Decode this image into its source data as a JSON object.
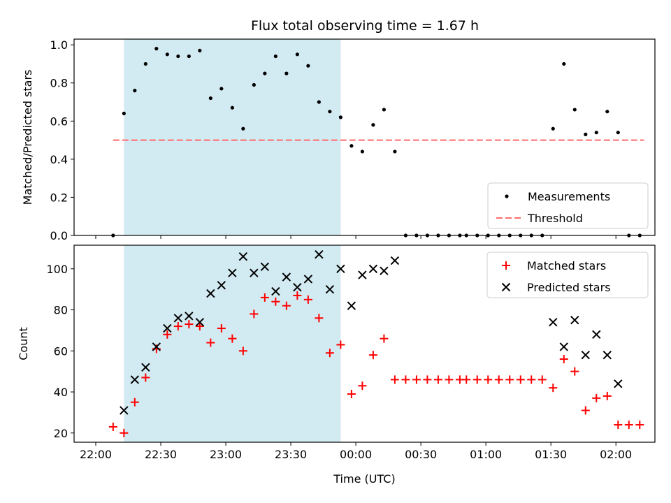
{
  "chart_data": {
    "type": "scatter",
    "title": "Flux total observing time = 1.67 h",
    "x_ticks": [
      "22:00",
      "22:30",
      "23:00",
      "23:30",
      "00:00",
      "00:30",
      "01:00",
      "01:30",
      "02:00"
    ],
    "xlabel": "Time (UTC)",
    "highlight_span": [
      "22:13",
      "23:53"
    ],
    "colors": {
      "highlight": "#add8e6",
      "threshold": "#ff6b6b",
      "matched": "#ff0000",
      "predicted": "#000000",
      "measurement": "#000000"
    },
    "panels": [
      {
        "ylabel": "Matched/Predicted stars",
        "ylim": [
          0,
          1.03
        ],
        "yticks": [
          "0.0",
          "0.2",
          "0.4",
          "0.6",
          "0.8",
          "1.0"
        ],
        "legend": {
          "placement": "lower-right",
          "entries": [
            "Measurements",
            "Threshold"
          ]
        },
        "threshold": {
          "name": "Threshold",
          "value": 0.5,
          "x_range": [
            "22:08",
            "02:13"
          ]
        },
        "series": [
          {
            "name": "Measurements",
            "marker": "dot",
            "points": [
              [
                "22:08",
                0.0
              ],
              [
                "22:13",
                0.64
              ],
              [
                "22:18",
                0.76
              ],
              [
                "22:23",
                0.9
              ],
              [
                "22:28",
                0.98
              ],
              [
                "22:33",
                0.95
              ],
              [
                "22:38",
                0.94
              ],
              [
                "22:43",
                0.94
              ],
              [
                "22:48",
                0.97
              ],
              [
                "22:53",
                0.72
              ],
              [
                "22:58",
                0.77
              ],
              [
                "23:03",
                0.67
              ],
              [
                "23:08",
                0.56
              ],
              [
                "23:13",
                0.79
              ],
              [
                "23:18",
                0.85
              ],
              [
                "23:23",
                0.94
              ],
              [
                "23:28",
                0.85
              ],
              [
                "23:33",
                0.95
              ],
              [
                "23:38",
                0.89
              ],
              [
                "23:43",
                0.7
              ],
              [
                "23:48",
                0.65
              ],
              [
                "23:53",
                0.62
              ],
              [
                "23:58",
                0.47
              ],
              [
                "00:03",
                0.44
              ],
              [
                "00:08",
                0.58
              ],
              [
                "00:13",
                0.66
              ],
              [
                "00:18",
                0.44
              ],
              [
                "00:23",
                0.0
              ],
              [
                "00:28",
                0.0
              ],
              [
                "00:33",
                0.0
              ],
              [
                "00:38",
                0.0
              ],
              [
                "00:43",
                0.0
              ],
              [
                "00:48",
                0.0
              ],
              [
                "00:51",
                0.0
              ],
              [
                "00:56",
                0.0
              ],
              [
                "01:01",
                0.0
              ],
              [
                "01:06",
                0.0
              ],
              [
                "01:11",
                0.0
              ],
              [
                "01:16",
                0.0
              ],
              [
                "01:21",
                0.0
              ],
              [
                "01:26",
                0.0
              ],
              [
                "01:31",
                0.56
              ],
              [
                "01:36",
                0.9
              ],
              [
                "01:41",
                0.66
              ],
              [
                "01:46",
                0.53
              ],
              [
                "01:51",
                0.54
              ],
              [
                "01:56",
                0.65
              ],
              [
                "02:01",
                0.54
              ],
              [
                "02:06",
                0.0
              ],
              [
                "02:11",
                0.0
              ]
            ]
          }
        ]
      },
      {
        "ylabel": "Count",
        "ylim": [
          15.5,
          111.5
        ],
        "yticks": [
          "20",
          "40",
          "60",
          "80",
          "100"
        ],
        "legend": {
          "placement": "upper-right",
          "entries": [
            "Matched stars",
            "Predicted stars"
          ]
        },
        "series": [
          {
            "name": "Matched stars",
            "marker": "plus",
            "points": [
              [
                "22:08",
                23
              ],
              [
                "22:13",
                20
              ],
              [
                "22:18",
                35
              ],
              [
                "22:23",
                47
              ],
              [
                "22:28",
                61
              ],
              [
                "22:33",
                68
              ],
              [
                "22:38",
                72
              ],
              [
                "22:43",
                73
              ],
              [
                "22:48",
                72
              ],
              [
                "22:53",
                64
              ],
              [
                "22:58",
                71
              ],
              [
                "23:03",
                66
              ],
              [
                "23:08",
                60
              ],
              [
                "23:13",
                78
              ],
              [
                "23:18",
                86
              ],
              [
                "23:23",
                84
              ],
              [
                "23:28",
                82
              ],
              [
                "23:33",
                87
              ],
              [
                "23:38",
                85
              ],
              [
                "23:43",
                76
              ],
              [
                "23:48",
                59
              ],
              [
                "23:53",
                63
              ],
              [
                "23:58",
                39
              ],
              [
                "00:03",
                43
              ],
              [
                "00:08",
                58
              ],
              [
                "00:13",
                66
              ],
              [
                "00:18",
                46
              ],
              [
                "00:23",
                46
              ],
              [
                "00:28",
                46
              ],
              [
                "00:33",
                46
              ],
              [
                "00:38",
                46
              ],
              [
                "00:43",
                46
              ],
              [
                "00:48",
                46
              ],
              [
                "00:51",
                46
              ],
              [
                "00:56",
                46
              ],
              [
                "01:01",
                46
              ],
              [
                "01:06",
                46
              ],
              [
                "01:11",
                46
              ],
              [
                "01:16",
                46
              ],
              [
                "01:21",
                46
              ],
              [
                "01:26",
                46
              ],
              [
                "01:31",
                42
              ],
              [
                "01:36",
                56
              ],
              [
                "01:41",
                50
              ],
              [
                "01:46",
                31
              ],
              [
                "01:51",
                37
              ],
              [
                "01:56",
                38
              ],
              [
                "02:01",
                24
              ],
              [
                "02:06",
                24
              ],
              [
                "02:11",
                24
              ]
            ]
          },
          {
            "name": "Predicted stars",
            "marker": "x",
            "points": [
              [
                "22:13",
                31
              ],
              [
                "22:18",
                46
              ],
              [
                "22:23",
                52
              ],
              [
                "22:28",
                62
              ],
              [
                "22:33",
                71
              ],
              [
                "22:38",
                76
              ],
              [
                "22:43",
                77
              ],
              [
                "22:48",
                74
              ],
              [
                "22:53",
                88
              ],
              [
                "22:58",
                92
              ],
              [
                "23:03",
                98
              ],
              [
                "23:08",
                106
              ],
              [
                "23:13",
                98
              ],
              [
                "23:18",
                101
              ],
              [
                "23:23",
                89
              ],
              [
                "23:28",
                96
              ],
              [
                "23:33",
                91
              ],
              [
                "23:38",
                95
              ],
              [
                "23:43",
                107
              ],
              [
                "23:48",
                90
              ],
              [
                "23:53",
                100
              ],
              [
                "23:58",
                82
              ],
              [
                "00:03",
                97
              ],
              [
                "00:08",
                100
              ],
              [
                "00:13",
                99
              ],
              [
                "00:18",
                104
              ],
              [
                "01:31",
                74
              ],
              [
                "01:36",
                62
              ],
              [
                "01:41",
                75
              ],
              [
                "01:46",
                58
              ],
              [
                "01:51",
                68
              ],
              [
                "01:56",
                58
              ],
              [
                "02:01",
                44
              ]
            ]
          }
        ]
      }
    ]
  }
}
